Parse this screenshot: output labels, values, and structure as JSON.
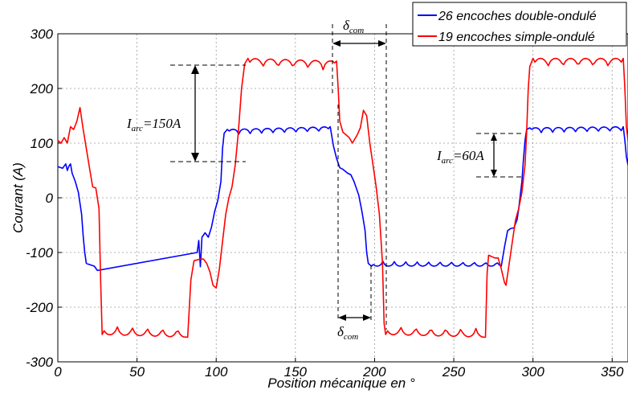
{
  "chart_data": {
    "type": "line",
    "xlabel": "Position mécanique en °",
    "ylabel": "Courant (A)",
    "xlim": [
      0,
      360
    ],
    "ylim": [
      -300,
      300
    ],
    "xticks": [
      "0",
      "50",
      "100",
      "150",
      "200",
      "250",
      "300",
      "350"
    ],
    "yticks": [
      "-300",
      "-200",
      "-100",
      "0",
      "100",
      "200",
      "300"
    ],
    "grid": true,
    "legend_position": "top-right",
    "series": [
      {
        "name": "26 encoches double-ondulé",
        "color": "#0000ff",
        "points": [
          [
            0,
            57
          ],
          [
            3,
            54
          ],
          [
            5,
            62
          ],
          [
            6,
            50
          ],
          [
            7,
            58
          ],
          [
            8,
            62
          ],
          [
            9,
            45
          ],
          [
            11,
            30
          ],
          [
            13,
            10
          ],
          [
            15,
            -30
          ],
          [
            16,
            -70
          ],
          [
            17,
            -100
          ],
          [
            18,
            -120
          ],
          [
            20,
            -122
          ],
          [
            23,
            -125
          ],
          [
            25,
            -133
          ],
          [
            90,
            -126
          ],
          [
            88,
            -100
          ],
          [
            89,
            -78
          ],
          [
            91,
            -72
          ],
          [
            93,
            -64
          ],
          [
            95,
            -72
          ],
          [
            97,
            -54
          ],
          [
            99,
            -25
          ],
          [
            101,
            -5
          ],
          [
            103,
            30
          ],
          [
            104,
            90
          ],
          [
            105,
            118
          ],
          [
            107,
            125
          ],
          [
            172,
            130
          ],
          [
            174,
            95
          ],
          [
            176,
            72
          ],
          [
            178,
            55
          ],
          [
            180,
            52
          ],
          [
            183,
            45
          ],
          [
            185,
            42
          ],
          [
            187,
            30
          ],
          [
            190,
            5
          ],
          [
            192,
            -25
          ],
          [
            194,
            -60
          ],
          [
            195,
            -100
          ],
          [
            196,
            -120
          ],
          [
            198,
            -125
          ],
          [
            280,
            -125
          ],
          [
            282,
            -90
          ],
          [
            284,
            -60
          ],
          [
            286,
            -56
          ],
          [
            288,
            -55
          ],
          [
            290,
            -40
          ],
          [
            291,
            -20
          ],
          [
            293,
            30
          ],
          [
            294,
            70
          ],
          [
            295,
            105
          ],
          [
            296,
            125
          ],
          [
            298,
            128
          ],
          [
            357,
            130
          ],
          [
            358,
            105
          ],
          [
            359,
            75
          ],
          [
            360,
            60
          ]
        ]
      },
      {
        "name": "19 encoches simple-ondulé",
        "color": "#ff0000",
        "points": [
          [
            0,
            105
          ],
          [
            2,
            100
          ],
          [
            4,
            110
          ],
          [
            6,
            100
          ],
          [
            8,
            130
          ],
          [
            10,
            125
          ],
          [
            12,
            140
          ],
          [
            14,
            165
          ],
          [
            16,
            125
          ],
          [
            18,
            90
          ],
          [
            20,
            55
          ],
          [
            22,
            20
          ],
          [
            24,
            18
          ],
          [
            26,
            -20
          ],
          [
            27,
            -150
          ],
          [
            28,
            -250
          ],
          [
            82,
            -255
          ],
          [
            84,
            -150
          ],
          [
            86,
            -115
          ],
          [
            90,
            -112
          ],
          [
            92,
            -112
          ],
          [
            94,
            -120
          ],
          [
            96,
            -135
          ],
          [
            98,
            -160
          ],
          [
            100,
            -165
          ],
          [
            102,
            -130
          ],
          [
            104,
            -80
          ],
          [
            106,
            -30
          ],
          [
            108,
            0
          ],
          [
            110,
            20
          ],
          [
            112,
            60
          ],
          [
            114,
            120
          ],
          [
            116,
            200
          ],
          [
            118,
            245
          ],
          [
            120,
            255
          ],
          [
            176,
            250
          ],
          [
            177,
            200
          ],
          [
            178,
            140
          ],
          [
            180,
            120
          ],
          [
            184,
            110
          ],
          [
            186,
            100
          ],
          [
            189,
            115
          ],
          [
            191,
            128
          ],
          [
            193,
            160
          ],
          [
            195,
            150
          ],
          [
            197,
            100
          ],
          [
            199,
            60
          ],
          [
            201,
            20
          ],
          [
            203,
            -30
          ],
          [
            205,
            -120
          ],
          [
            206,
            -230
          ],
          [
            207,
            -250
          ],
          [
            270,
            -255
          ],
          [
            271,
            -140
          ],
          [
            272,
            -105
          ],
          [
            276,
            -110
          ],
          [
            278,
            -110
          ],
          [
            280,
            -130
          ],
          [
            282,
            -155
          ],
          [
            283,
            -160
          ],
          [
            285,
            -120
          ],
          [
            287,
            -80
          ],
          [
            289,
            -40
          ],
          [
            291,
            -20
          ],
          [
            293,
            10
          ],
          [
            295,
            60
          ],
          [
            296,
            120
          ],
          [
            297,
            200
          ],
          [
            298,
            240
          ],
          [
            300,
            255
          ],
          [
            357,
            255
          ],
          [
            358,
            200
          ],
          [
            359,
            130
          ],
          [
            360,
            105
          ]
        ]
      }
    ],
    "annotations": {
      "iarc1_main": "I",
      "iarc1_sub": "arc",
      "iarc1_value": "=150A",
      "iarc2_main": "I",
      "iarc2_sub": "arc",
      "iarc2_value": "=60A",
      "dcom_top_main": "δ",
      "dcom_top_sub": "com",
      "dcom_bottom_main": "δ",
      "dcom_bottom_sub": "com"
    }
  }
}
